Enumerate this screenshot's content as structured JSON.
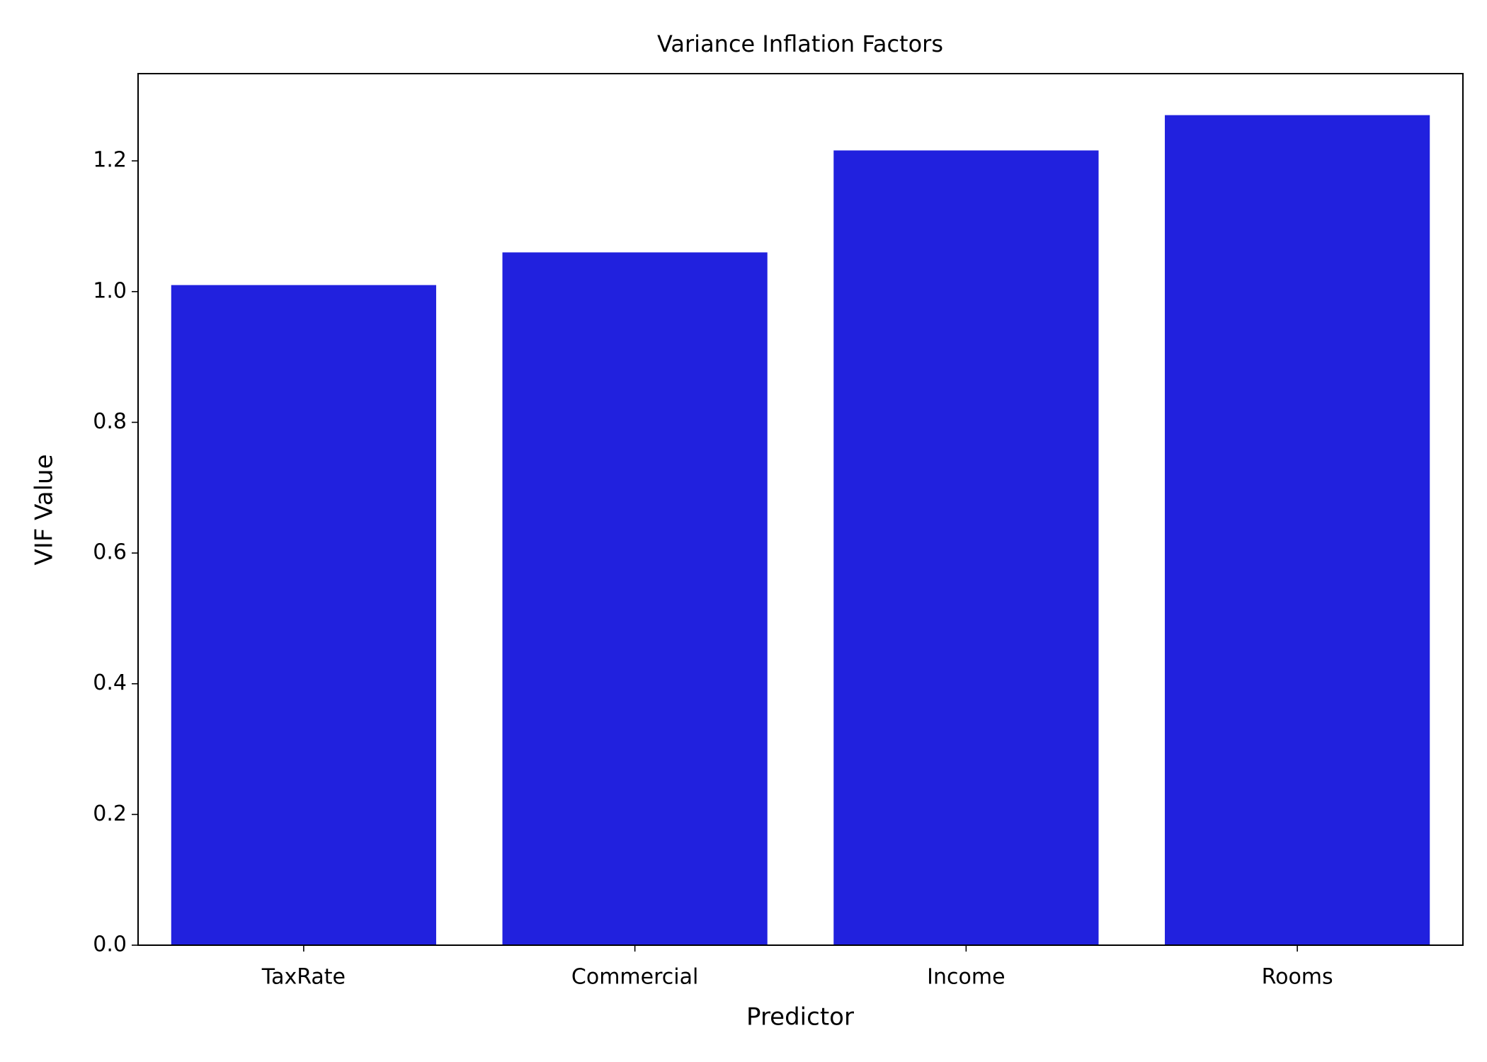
{
  "chart_data": {
    "type": "bar",
    "title": "Variance Inflation Factors",
    "x_label": "Predictor",
    "y_label": "VIF Value",
    "categories": [
      "TaxRate",
      "Commercial",
      "Income",
      "Rooms"
    ],
    "values": [
      1.01,
      1.06,
      1.216,
      1.27
    ],
    "color": "#2121de",
    "ylim": [
      0,
      1.3335
    ],
    "yticks": [
      {
        "value": 0,
        "label": "0.0"
      },
      0.2,
      0.4,
      0.6,
      0.8,
      {
        "value": 1,
        "label": "1.0"
      },
      1.2
    ],
    "grid": false
  }
}
